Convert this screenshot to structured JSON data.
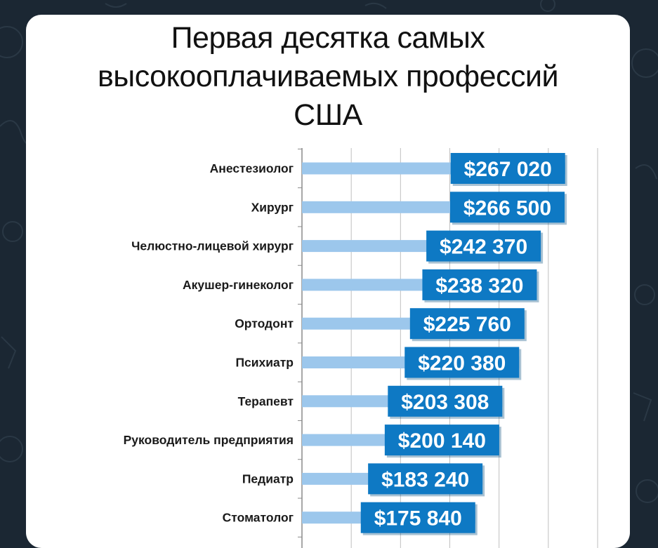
{
  "colors": {
    "background": "#1b2733",
    "card": "#ffffff",
    "bar": "#9cc7ec",
    "label_box": "#0e79c4",
    "label_text": "#ffffff",
    "axis": "#8a8a8a",
    "category_text": "#1a1a1a"
  },
  "chart_data": {
    "type": "bar",
    "orientation": "horizontal",
    "title_lines": [
      "Первая десятка самых",
      "высокооплачиваемых профессий",
      "США"
    ],
    "categories": [
      "Анестезиолог",
      "Хирург",
      "Челюстно-лицевой хирург",
      "Акушер-гинеколог",
      "Ортодонт",
      "Психиатр",
      "Терапевт",
      "Руководитель предприятия",
      "Педиатр",
      "Стоматолог"
    ],
    "values": [
      267020,
      266500,
      242370,
      238320,
      225760,
      220380,
      203308,
      200140,
      183240,
      175840
    ],
    "data_labels": [
      "$267 020",
      "$266 500",
      "$242 370",
      "$238 320",
      "$225 760",
      "$220 380",
      "$203 308",
      "$200 140",
      "$183 240",
      "$175 840"
    ],
    "xlim": [
      0,
      300000
    ],
    "grid": true,
    "legend": "none"
  }
}
